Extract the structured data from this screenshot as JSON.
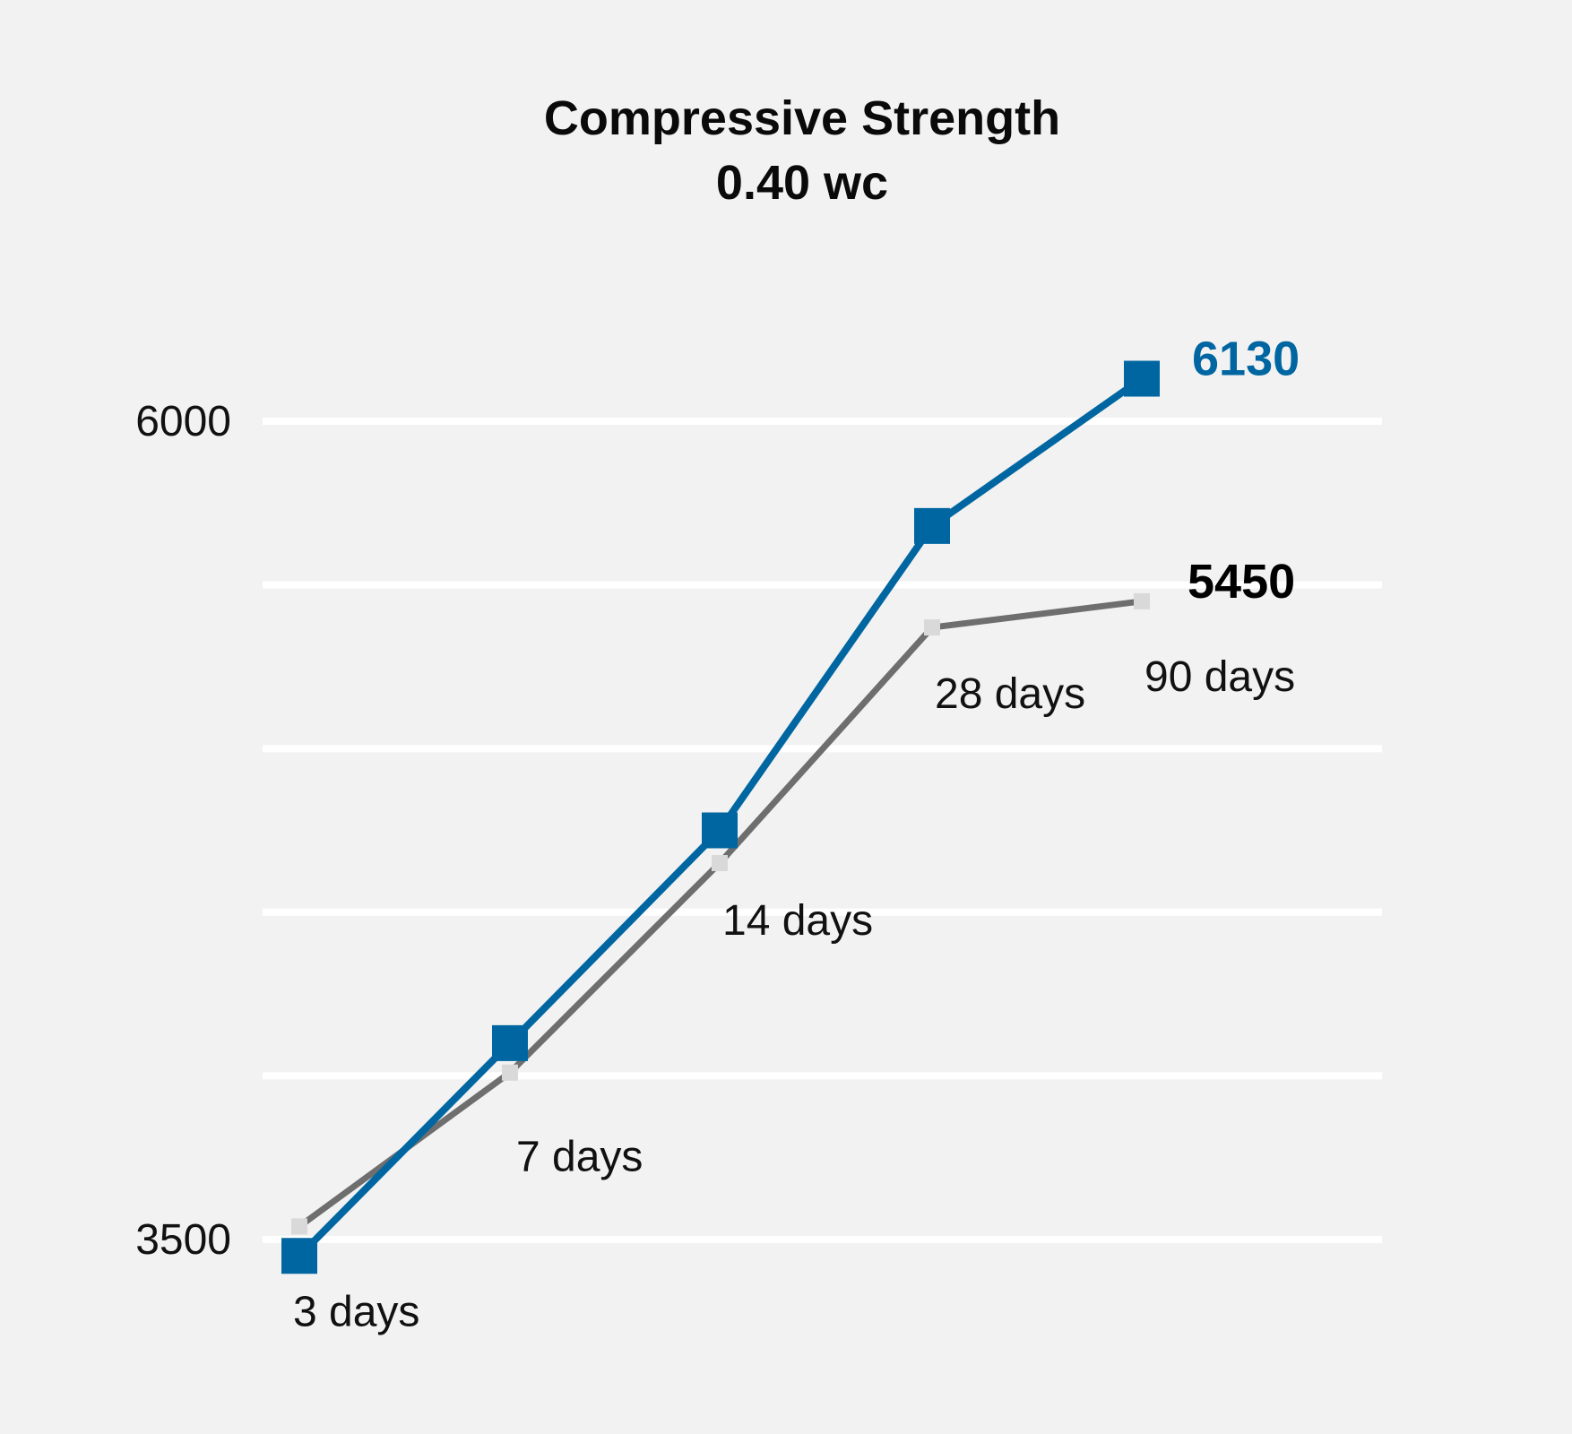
{
  "chart_data": {
    "type": "line",
    "title": "Compressive Strength",
    "subtitle": "0.40 wc",
    "x": [
      "3 days",
      "7 days",
      "14 days",
      "28 days",
      "90 days"
    ],
    "ylim": [
      3500,
      6000
    ],
    "yticks": [
      3500,
      4000,
      4500,
      5000,
      5500,
      6000
    ],
    "ytick_labels_shown": [
      "3500",
      "6000"
    ],
    "grid": true,
    "series": [
      {
        "values": [
          3450,
          4100,
          4750,
          5680,
          6130
        ],
        "color": "#0066a1",
        "marker": "square",
        "end_label": "6130"
      },
      {
        "values": [
          3540,
          4010,
          4650,
          5370,
          5450
        ],
        "color": "#6e6e6e",
        "marker": "square",
        "end_label": "5450",
        "end_label_color": "#000000"
      }
    ]
  }
}
